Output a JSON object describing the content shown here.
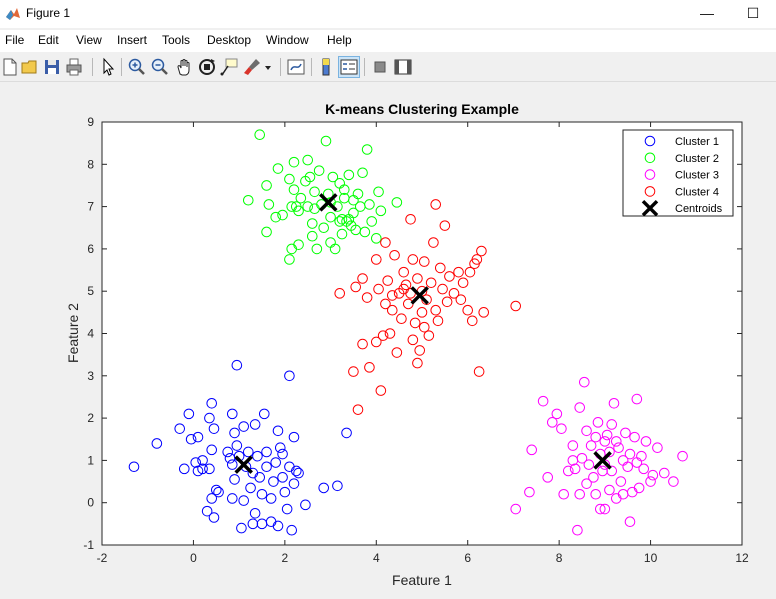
{
  "window": {
    "title": "Figure 1",
    "minimize_glyph": "—",
    "maximize_glyph": "☐"
  },
  "menu": [
    "File",
    "Edit",
    "View",
    "Insert",
    "Tools",
    "Desktop",
    "Window",
    "Help"
  ],
  "toolbar_icons": [
    "new-figure-icon",
    "open-file-icon",
    "save-icon",
    "print-icon",
    "pointer-icon",
    "zoom-in-icon",
    "zoom-out-icon",
    "pan-icon",
    "rotate-3d-icon",
    "data-cursor-icon",
    "brush-icon",
    "brush-dropdown-icon",
    "link-plot-icon",
    "insert-colorbar-icon",
    "insert-legend-icon",
    "hide-plot-tools-icon",
    "show-plot-tools-icon"
  ],
  "colors": {
    "cluster1": "#0000ff",
    "cluster2": "#00ff00",
    "cluster3": "#ff00ff",
    "cluster4": "#ff0000",
    "centroid": "#000000"
  },
  "chart_data": {
    "type": "scatter",
    "title": "K-means Clustering Example",
    "xlabel": "Feature 1",
    "ylabel": "Feature 2",
    "xlim": [
      -2,
      12
    ],
    "ylim": [
      -1,
      9
    ],
    "xticks": [
      "-2",
      "0",
      "2",
      "4",
      "6",
      "8",
      "10",
      "12"
    ],
    "yticks": [
      "-1",
      "0",
      "1",
      "2",
      "3",
      "4",
      "5",
      "6",
      "7",
      "8",
      "9"
    ],
    "grid": false,
    "legend_position": "top-right",
    "series": [
      {
        "name": "Cluster 1",
        "marker": "circle",
        "color": "#0000ff",
        "points": [
          [
            -1.3,
            0.85
          ],
          [
            -0.8,
            1.4
          ],
          [
            -0.3,
            1.75
          ],
          [
            -0.2,
            0.8
          ],
          [
            -0.1,
            2.1
          ],
          [
            -0.05,
            1.5
          ],
          [
            0.05,
            0.95
          ],
          [
            0.1,
            1.55
          ],
          [
            0.1,
            0.75
          ],
          [
            0.2,
            1.0
          ],
          [
            0.2,
            0.8
          ],
          [
            0.3,
            -0.2
          ],
          [
            0.35,
            0.8
          ],
          [
            0.35,
            2.0
          ],
          [
            0.4,
            1.25
          ],
          [
            0.4,
            2.35
          ],
          [
            0.4,
            0.1
          ],
          [
            0.45,
            1.75
          ],
          [
            0.45,
            -0.35
          ],
          [
            0.5,
            0.3
          ],
          [
            0.55,
            0.25
          ],
          [
            0.75,
            1.2
          ],
          [
            0.8,
            1.05
          ],
          [
            0.85,
            2.1
          ],
          [
            0.85,
            0.9
          ],
          [
            0.85,
            0.1
          ],
          [
            0.9,
            1.65
          ],
          [
            0.9,
            0.55
          ],
          [
            0.95,
            1.35
          ],
          [
            0.95,
            3.25
          ],
          [
            1.0,
            1.1
          ],
          [
            1.05,
            -0.6
          ],
          [
            1.1,
            0.05
          ],
          [
            1.1,
            1.8
          ],
          [
            1.15,
            0.85
          ],
          [
            1.2,
            1.2
          ],
          [
            1.25,
            0.35
          ],
          [
            1.3,
            -0.5
          ],
          [
            1.3,
            0.7
          ],
          [
            1.35,
            -0.25
          ],
          [
            1.35,
            1.85
          ],
          [
            1.4,
            1.1
          ],
          [
            1.45,
            0.6
          ],
          [
            1.5,
            0.2
          ],
          [
            1.5,
            -0.5
          ],
          [
            1.55,
            2.1
          ],
          [
            1.6,
            0.85
          ],
          [
            1.6,
            1.2
          ],
          [
            1.7,
            0.1
          ],
          [
            1.7,
            -0.45
          ],
          [
            1.75,
            0.5
          ],
          [
            1.8,
            0.95
          ],
          [
            1.85,
            -0.55
          ],
          [
            1.85,
            1.7
          ],
          [
            1.9,
            1.3
          ],
          [
            1.95,
            1.15
          ],
          [
            1.95,
            0.6
          ],
          [
            2.0,
            0.25
          ],
          [
            2.05,
            -0.15
          ],
          [
            2.1,
            0.85
          ],
          [
            2.1,
            3.0
          ],
          [
            2.15,
            -0.65
          ],
          [
            2.2,
            0.45
          ],
          [
            2.2,
            1.55
          ],
          [
            2.25,
            0.75
          ],
          [
            2.3,
            0.7
          ],
          [
            2.45,
            -0.05
          ],
          [
            2.85,
            0.35
          ],
          [
            3.15,
            0.4
          ],
          [
            3.35,
            1.65
          ]
        ]
      },
      {
        "name": "Cluster 2",
        "marker": "circle",
        "color": "#00ff00",
        "points": [
          [
            1.2,
            7.15
          ],
          [
            1.45,
            8.7
          ],
          [
            1.6,
            7.5
          ],
          [
            1.6,
            6.4
          ],
          [
            1.65,
            7.05
          ],
          [
            1.8,
            6.75
          ],
          [
            1.85,
            7.9
          ],
          [
            1.95,
            6.8
          ],
          [
            2.1,
            7.65
          ],
          [
            2.1,
            5.75
          ],
          [
            2.15,
            6.0
          ],
          [
            2.2,
            8.05
          ],
          [
            2.2,
            7.4
          ],
          [
            2.25,
            7.0
          ],
          [
            2.3,
            6.1
          ],
          [
            2.3,
            6.9
          ],
          [
            2.35,
            7.2
          ],
          [
            2.5,
            8.1
          ],
          [
            2.5,
            7.0
          ],
          [
            2.55,
            7.7
          ],
          [
            2.6,
            6.6
          ],
          [
            2.65,
            7.35
          ],
          [
            2.65,
            6.95
          ],
          [
            2.7,
            6.0
          ],
          [
            2.75,
            7.85
          ],
          [
            2.8,
            7.05
          ],
          [
            2.85,
            6.5
          ],
          [
            2.9,
            8.55
          ],
          [
            2.95,
            7.3
          ],
          [
            3.0,
            6.75
          ],
          [
            3.0,
            6.15
          ],
          [
            3.05,
            7.7
          ],
          [
            3.1,
            6.0
          ],
          [
            3.15,
            7.0
          ],
          [
            3.2,
            7.55
          ],
          [
            3.25,
            6.7
          ],
          [
            3.25,
            6.35
          ],
          [
            3.3,
            7.4
          ],
          [
            3.35,
            6.65
          ],
          [
            3.4,
            7.75
          ],
          [
            3.45,
            6.55
          ],
          [
            3.5,
            7.15
          ],
          [
            3.5,
            6.85
          ],
          [
            3.55,
            6.45
          ],
          [
            3.6,
            7.3
          ],
          [
            3.7,
            7.8
          ],
          [
            3.75,
            6.4
          ],
          [
            3.8,
            8.35
          ],
          [
            3.85,
            7.05
          ],
          [
            3.9,
            6.65
          ],
          [
            4.0,
            6.25
          ],
          [
            4.05,
            7.35
          ],
          [
            4.1,
            6.9
          ],
          [
            4.45,
            7.1
          ],
          [
            3.2,
            6.65
          ],
          [
            3.4,
            6.7
          ],
          [
            2.45,
            7.6
          ],
          [
            3.65,
            7.0
          ],
          [
            2.15,
            7.0
          ],
          [
            2.6,
            6.3
          ],
          [
            3.3,
            7.2
          ],
          [
            3.0,
            7.1
          ]
        ]
      },
      {
        "name": "Cluster 3",
        "marker": "circle",
        "color": "#ff00ff",
        "points": [
          [
            7.05,
            -0.15
          ],
          [
            7.35,
            0.25
          ],
          [
            7.4,
            1.25
          ],
          [
            7.65,
            2.4
          ],
          [
            7.75,
            0.6
          ],
          [
            7.85,
            1.9
          ],
          [
            7.95,
            2.1
          ],
          [
            8.05,
            1.75
          ],
          [
            8.1,
            0.2
          ],
          [
            8.2,
            0.75
          ],
          [
            8.3,
            1.35
          ],
          [
            8.35,
            0.8
          ],
          [
            8.4,
            -0.65
          ],
          [
            8.45,
            2.25
          ],
          [
            8.5,
            1.05
          ],
          [
            8.55,
            2.85
          ],
          [
            8.6,
            0.45
          ],
          [
            8.6,
            1.7
          ],
          [
            8.65,
            0.9
          ],
          [
            8.7,
            1.35
          ],
          [
            8.75,
            0.6
          ],
          [
            8.8,
            0.2
          ],
          [
            8.85,
            1.9
          ],
          [
            8.9,
            1.15
          ],
          [
            8.9,
            -0.15
          ],
          [
            8.95,
            0.75
          ],
          [
            9.0,
            1.45
          ],
          [
            9.0,
            0.9
          ],
          [
            9.05,
            1.6
          ],
          [
            9.1,
            0.3
          ],
          [
            9.1,
            1.2
          ],
          [
            9.15,
            0.75
          ],
          [
            9.2,
            2.35
          ],
          [
            9.25,
            1.45
          ],
          [
            9.3,
            1.3
          ],
          [
            9.35,
            0.5
          ],
          [
            9.4,
            0.2
          ],
          [
            9.45,
            1.65
          ],
          [
            9.5,
            0.85
          ],
          [
            9.55,
            -0.45
          ],
          [
            9.55,
            1.15
          ],
          [
            9.6,
            0.25
          ],
          [
            9.65,
            1.55
          ],
          [
            9.7,
            2.45
          ],
          [
            9.75,
            0.35
          ],
          [
            9.8,
            1.1
          ],
          [
            9.85,
            0.8
          ],
          [
            9.9,
            1.45
          ],
          [
            10.0,
            0.5
          ],
          [
            10.05,
            0.65
          ],
          [
            10.15,
            1.3
          ],
          [
            10.3,
            0.7
          ],
          [
            10.5,
            0.5
          ],
          [
            10.7,
            1.1
          ],
          [
            9.0,
            -0.15
          ],
          [
            8.3,
            1.0
          ],
          [
            9.4,
            1.0
          ],
          [
            8.8,
            1.55
          ],
          [
            9.25,
            0.1
          ],
          [
            9.7,
            0.95
          ],
          [
            8.45,
            0.2
          ],
          [
            9.15,
            1.85
          ]
        ]
      },
      {
        "name": "Cluster 4",
        "marker": "circle",
        "color": "#ff0000",
        "points": [
          [
            3.2,
            4.95
          ],
          [
            3.5,
            3.1
          ],
          [
            3.55,
            5.1
          ],
          [
            3.6,
            2.2
          ],
          [
            3.7,
            3.75
          ],
          [
            3.7,
            5.3
          ],
          [
            3.8,
            4.85
          ],
          [
            3.85,
            3.2
          ],
          [
            4.0,
            3.8
          ],
          [
            4.0,
            5.75
          ],
          [
            4.05,
            5.05
          ],
          [
            4.1,
            2.65
          ],
          [
            4.15,
            3.95
          ],
          [
            4.2,
            4.7
          ],
          [
            4.2,
            6.15
          ],
          [
            4.25,
            5.25
          ],
          [
            4.3,
            4.0
          ],
          [
            4.35,
            4.55
          ],
          [
            4.4,
            5.85
          ],
          [
            4.45,
            3.55
          ],
          [
            4.5,
            4.95
          ],
          [
            4.55,
            4.35
          ],
          [
            4.6,
            5.45
          ],
          [
            4.65,
            5.15
          ],
          [
            4.7,
            4.7
          ],
          [
            4.75,
            6.7
          ],
          [
            4.8,
            3.85
          ],
          [
            4.8,
            5.75
          ],
          [
            4.85,
            4.25
          ],
          [
            4.9,
            5.3
          ],
          [
            4.9,
            3.3
          ],
          [
            4.95,
            3.6
          ],
          [
            5.0,
            4.5
          ],
          [
            5.0,
            5.0
          ],
          [
            5.05,
            5.7
          ],
          [
            5.1,
            4.8
          ],
          [
            5.15,
            3.95
          ],
          [
            5.2,
            5.2
          ],
          [
            5.25,
            6.15
          ],
          [
            5.3,
            4.55
          ],
          [
            5.3,
            7.05
          ],
          [
            5.35,
            4.3
          ],
          [
            5.4,
            5.55
          ],
          [
            5.45,
            5.05
          ],
          [
            5.5,
            6.55
          ],
          [
            5.55,
            4.75
          ],
          [
            5.6,
            5.35
          ],
          [
            5.7,
            4.95
          ],
          [
            5.8,
            5.45
          ],
          [
            5.85,
            4.8
          ],
          [
            5.9,
            5.2
          ],
          [
            6.0,
            4.55
          ],
          [
            6.05,
            5.45
          ],
          [
            6.1,
            4.3
          ],
          [
            6.15,
            5.65
          ],
          [
            6.2,
            5.75
          ],
          [
            6.25,
            3.1
          ],
          [
            6.3,
            5.95
          ],
          [
            6.35,
            4.5
          ],
          [
            7.05,
            4.65
          ],
          [
            4.6,
            5.05
          ],
          [
            4.35,
            4.9
          ],
          [
            5.05,
            4.15
          ],
          [
            4.75,
            4.95
          ]
        ]
      },
      {
        "name": "Centroids",
        "marker": "x",
        "color": "#000000",
        "points": [
          [
            1.1,
            0.9
          ],
          [
            2.95,
            7.1
          ],
          [
            8.95,
            1.0
          ],
          [
            4.95,
            4.9
          ]
        ]
      }
    ]
  }
}
